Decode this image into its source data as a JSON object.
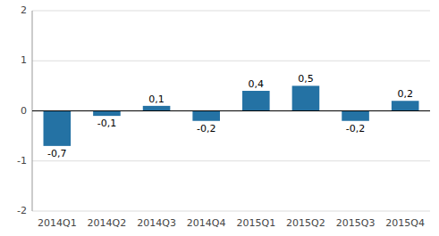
{
  "chart_data": {
    "type": "bar",
    "categories": [
      "2014Q1",
      "2014Q2",
      "2014Q3",
      "2014Q4",
      "2015Q1",
      "2015Q2",
      "2015Q3",
      "2015Q4"
    ],
    "values": [
      -0.7,
      -0.1,
      0.1,
      -0.2,
      0.4,
      0.5,
      -0.2,
      0.2
    ],
    "value_labels": [
      "-0,7",
      "-0,1",
      "0,1",
      "-0,2",
      "0,4",
      "0,5",
      "-0,2",
      "0,2"
    ],
    "data_labels": true,
    "color": "#2472a4",
    "ylim": [
      -2,
      2
    ],
    "yticks": [
      -2,
      -1,
      0,
      1,
      2
    ],
    "grid": true
  }
}
